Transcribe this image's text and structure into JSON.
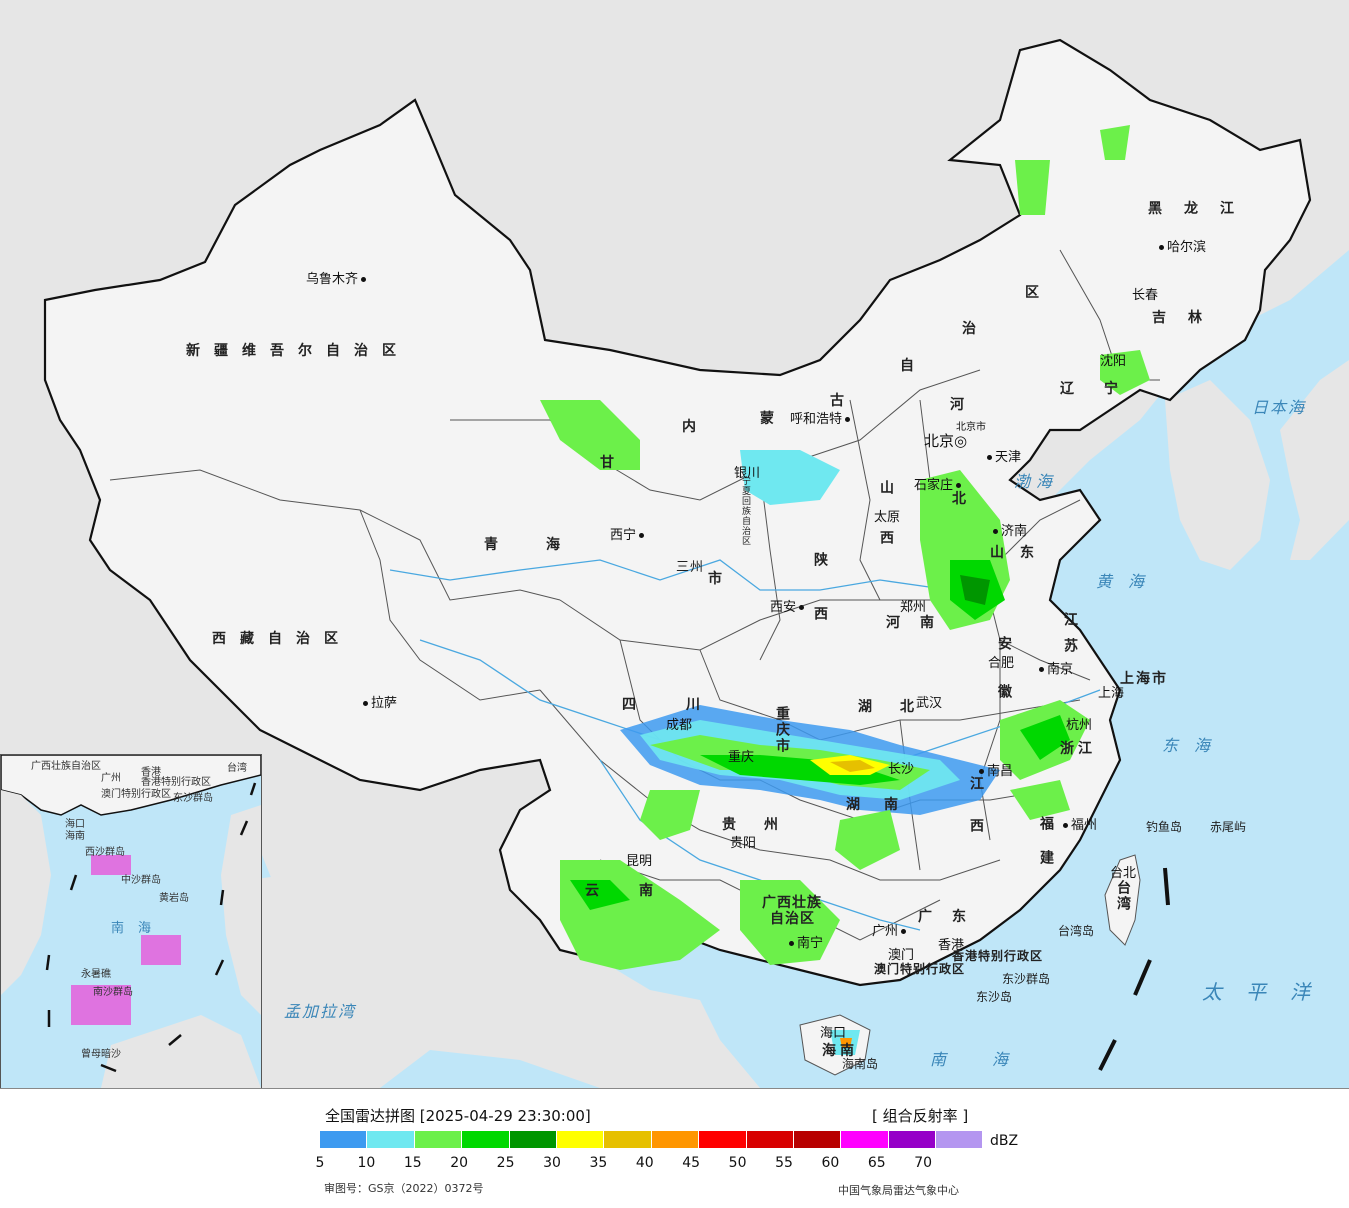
{
  "map": {
    "colors": {
      "sea": "#bfe6f8",
      "foreign_land": "#e6e6e6",
      "china_land": "#f4f4f4",
      "border": "#111111",
      "river": "#4aa8e0"
    },
    "provinces": [
      {
        "id": "xinjiang",
        "label": "新疆维吾尔自治区"
      },
      {
        "id": "xizang",
        "label": "西藏自治区"
      },
      {
        "id": "qinghai",
        "label": "青海"
      },
      {
        "id": "gansu",
        "label": "甘"
      },
      {
        "id": "neimenggu-nei",
        "label": "内"
      },
      {
        "id": "neimenggu-meng",
        "label": "蒙"
      },
      {
        "id": "neimenggu-gu",
        "label": "古"
      },
      {
        "id": "neimenggu-zi",
        "label": "自"
      },
      {
        "id": "neimenggu-zhi",
        "label": "治"
      },
      {
        "id": "neimenggu-qu",
        "label": "区"
      },
      {
        "id": "heilongjiang",
        "label": "黑龙江"
      },
      {
        "id": "jilin",
        "label": "吉林"
      },
      {
        "id": "liaoning",
        "label": "辽宁"
      },
      {
        "id": "hebei-he",
        "label": "河"
      },
      {
        "id": "hebei-bei",
        "label": "北"
      },
      {
        "id": "shanxi",
        "label": "山西"
      },
      {
        "id": "shaanxi",
        "label": "陕西"
      },
      {
        "id": "ningxia",
        "label": "宁夏回族自治区"
      },
      {
        "id": "shandong",
        "label": "山东"
      },
      {
        "id": "henan",
        "label": "河南"
      },
      {
        "id": "jiangsu",
        "label": "江苏"
      },
      {
        "id": "anhui",
        "label": "安徽"
      },
      {
        "id": "shanghai",
        "label": "上海市"
      },
      {
        "id": "zhejiang",
        "label": "浙江"
      },
      {
        "id": "hubei",
        "label": "湖北"
      },
      {
        "id": "sichuan",
        "label": "四川"
      },
      {
        "id": "chongqing",
        "label": "重庆市"
      },
      {
        "id": "hunan",
        "label": "湖南"
      },
      {
        "id": "jiangxi",
        "label": "江西"
      },
      {
        "id": "fujian",
        "label": "福建"
      },
      {
        "id": "guizhou",
        "label": "贵州"
      },
      {
        "id": "yunnan",
        "label": "云南"
      },
      {
        "id": "guangxi-1",
        "label": "广西壮族"
      },
      {
        "id": "guangxi-2",
        "label": "自治区"
      },
      {
        "id": "guangdong",
        "label": "广东"
      },
      {
        "id": "taiwan",
        "label": "台湾"
      },
      {
        "id": "hainan",
        "label": "海南"
      },
      {
        "id": "hk",
        "label": "香港特别行政区"
      },
      {
        "id": "macau",
        "label": "澳门特别行政区"
      },
      {
        "id": "gansu-city",
        "label": "三州"
      },
      {
        "id": "gansu-shi",
        "label": "市"
      }
    ],
    "cities": [
      {
        "name": "乌鲁木齐"
      },
      {
        "name": "拉萨"
      },
      {
        "name": "西宁"
      },
      {
        "name": "银川"
      },
      {
        "name": "呼和浩特"
      },
      {
        "name": "北京"
      },
      {
        "name": "北京市"
      },
      {
        "name": "天津"
      },
      {
        "name": "石家庄"
      },
      {
        "name": "太原"
      },
      {
        "name": "济南"
      },
      {
        "name": "郑州"
      },
      {
        "name": "西安"
      },
      {
        "name": "合肥"
      },
      {
        "name": "南京"
      },
      {
        "name": "上海"
      },
      {
        "name": "杭州"
      },
      {
        "name": "武汉"
      },
      {
        "name": "南昌"
      },
      {
        "name": "福州"
      },
      {
        "name": "成都"
      },
      {
        "name": "重庆"
      },
      {
        "name": "贵阳"
      },
      {
        "name": "长沙"
      },
      {
        "name": "昆明"
      },
      {
        "name": "南宁"
      },
      {
        "name": "广州"
      },
      {
        "name": "澳门"
      },
      {
        "name": "香港"
      },
      {
        "name": "台北"
      },
      {
        "name": "海口"
      },
      {
        "name": "沈阳"
      },
      {
        "name": "长春"
      },
      {
        "name": "哈尔滨"
      }
    ],
    "seas": [
      {
        "name": "日本海"
      },
      {
        "name": "渤海"
      },
      {
        "name": "黄海"
      },
      {
        "name": "东海"
      },
      {
        "name": "太平洋"
      },
      {
        "name": "南海"
      },
      {
        "name": "孟加拉湾"
      }
    ],
    "islands": [
      {
        "name": "钓鱼岛"
      },
      {
        "name": "赤尾屿"
      },
      {
        "name": "台湾岛"
      },
      {
        "name": "东沙群岛"
      },
      {
        "name": "东沙岛"
      },
      {
        "name": "海南岛"
      }
    ],
    "inset": {
      "labels": [
        "广西壮族自治区",
        "广州",
        "香港",
        "台湾",
        "澳门特别行政区",
        "香港特别行政区",
        "东沙群岛",
        "海口",
        "海南",
        "西沙群岛",
        "中沙群岛",
        "黄岩岛",
        "南海",
        "永暑礁",
        "南沙群岛",
        "曾母暗沙"
      ]
    }
  },
  "legend": {
    "title": "全国雷达拼图 [2025-04-29 23:30:00]",
    "product": "[ 组合反射率 ]",
    "unit": "dBZ",
    "colors": [
      "#3d9af0",
      "#6fe8f0",
      "#6cf04a",
      "#00d800",
      "#009600",
      "#ffff00",
      "#e6c000",
      "#ff9600",
      "#ff0000",
      "#d80000",
      "#b80000",
      "#ff00ff",
      "#9600c8",
      "#b496f0"
    ],
    "ticks": [
      "5",
      "10",
      "15",
      "20",
      "25",
      "30",
      "35",
      "40",
      "45",
      "50",
      "55",
      "60",
      "65",
      "70"
    ],
    "approval": "审图号：GS京（2022）0372号",
    "agency": "中国气象局雷达气象中心"
  },
  "radar_echoes": [
    {
      "region": "四川盆地至长江中游",
      "level_dbz": 35
    },
    {
      "region": "湖北湖南交界",
      "level_dbz": 40
    },
    {
      "region": "河南山东交界",
      "level_dbz": 25
    },
    {
      "region": "浙江福建",
      "level_dbz": 25
    },
    {
      "region": "云南贵州广西",
      "level_dbz": 25
    },
    {
      "region": "甘肃宁夏内蒙古",
      "level_dbz": 20
    },
    {
      "region": "东北",
      "level_dbz": 15
    },
    {
      "region": "海南",
      "level_dbz": 40
    }
  ]
}
